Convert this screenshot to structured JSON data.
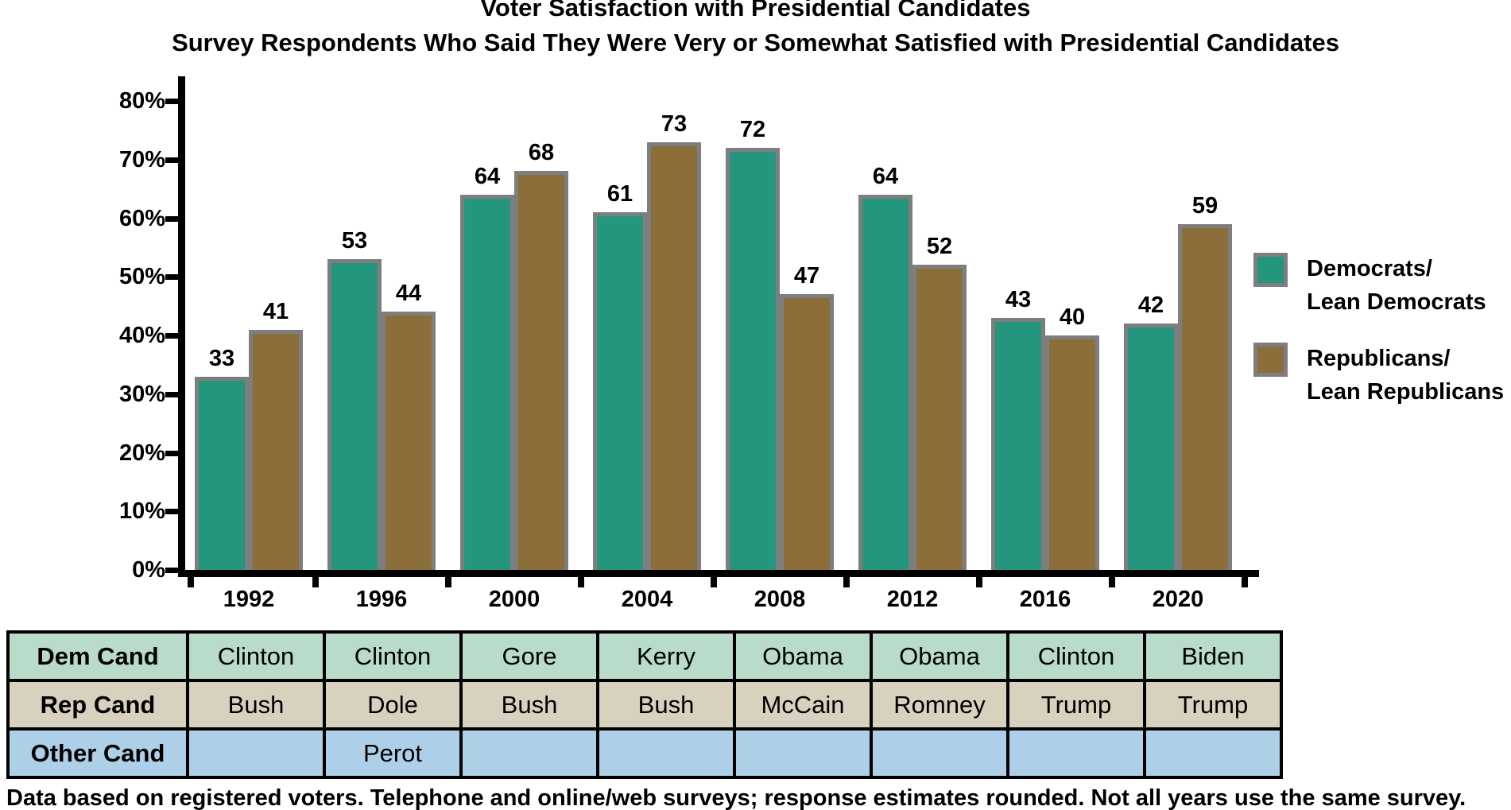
{
  "title": "Voter Satisfaction with Presidential Candidates",
  "subtitle": "Survey Respondents Who Said They Were Very or Somewhat Satisfied with Presidential Candidates",
  "note": "Data based on registered voters. Telephone and online/web surveys; response estimates rounded. Not all years use the same survey.",
  "colors": {
    "democrat": "#24967d",
    "republican": "#8b6e3a",
    "bar_border": "#7e7e7e",
    "axis": "#000000",
    "row_dem_bg": "#b8dcc9",
    "row_rep_bg": "#d8d1bd",
    "row_other_bg": "#add0e8"
  },
  "chart_data": {
    "type": "bar",
    "title": "Voter Satisfaction with Presidential Candidates",
    "subtitle": "Survey Respondents Who Said They Were Very or Somewhat Satisfied with Presidential Candidates",
    "categories": [
      "1992",
      "1996",
      "2000",
      "2004",
      "2008",
      "2012",
      "2016",
      "2020"
    ],
    "series": [
      {
        "name": "Democrats/Lean Democrats",
        "color": "#24967d",
        "values": [
          33,
          53,
          64,
          61,
          72,
          64,
          43,
          42
        ]
      },
      {
        "name": "Republicans/Lean Republicans",
        "color": "#8b6e3a",
        "values": [
          41,
          44,
          68,
          73,
          47,
          52,
          40,
          59
        ]
      }
    ],
    "xlabel": "",
    "ylabel": "",
    "ylim": [
      0,
      80
    ],
    "ytick_step": 10,
    "ytick_labels": [
      "0%",
      "10%",
      "20%",
      "30%",
      "40%",
      "50%",
      "60%",
      "70%",
      "80%"
    ],
    "grid": false,
    "data_labels": true,
    "legend_position": "right"
  },
  "legend": {
    "items": [
      {
        "line1": "Democrats/",
        "line2": "Lean Democrats",
        "color": "#24967d"
      },
      {
        "line1": "Republicans/",
        "line2": "Lean Republicans",
        "color": "#8b6e3a"
      }
    ]
  },
  "table": {
    "row_headers": [
      "Dem Cand",
      "Rep Cand",
      "Other Cand"
    ],
    "rows": [
      [
        "Clinton",
        "Clinton",
        "Gore",
        "Kerry",
        "Obama",
        "Obama",
        "Clinton",
        "Biden"
      ],
      [
        "Bush",
        "Dole",
        "Bush",
        "Bush",
        "McCain",
        "Romney",
        "Trump",
        "Trump"
      ],
      [
        "",
        "Perot",
        "",
        "",
        "",
        "",
        "",
        ""
      ]
    ]
  }
}
